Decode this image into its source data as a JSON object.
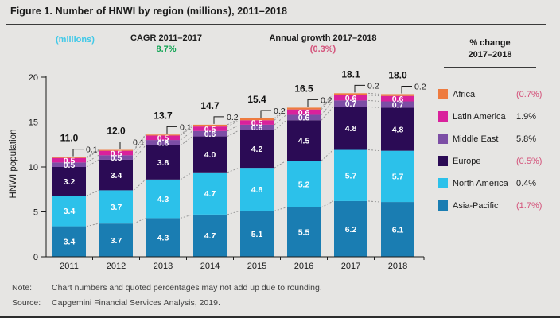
{
  "title": "Figure 1. Number of HNWI by region (millions), 2011–2018",
  "header": {
    "units_label": "(millions)",
    "cagr_label": "CAGR 2011–2017",
    "cagr_value": "8.7%",
    "growth_label": "Annual growth 2017–2018",
    "growth_value": "(0.3%)",
    "pct_change_line1": "% change",
    "pct_change_line2": "2017–2018"
  },
  "colors": {
    "positive_green": "#0fa352",
    "negative_pink": "#d4537b",
    "accent_cyan": "#41c9e8",
    "text_dark": "#1b1b1b",
    "background": "#e6e5e3"
  },
  "legend": {
    "items": [
      {
        "label": "Africa",
        "value": "(0.7%)",
        "color": "#ee7b3f",
        "value_color": "#d4537b"
      },
      {
        "label": "Latin America",
        "value": "1.9%",
        "color": "#d9219c",
        "value_color": "#1b1b1b"
      },
      {
        "label": "Middle East",
        "value": "5.8%",
        "color": "#7c4ea5",
        "value_color": "#1b1b1b"
      },
      {
        "label": "Europe",
        "value": "(0.5%)",
        "color": "#2b0b55",
        "value_color": "#d4537b"
      },
      {
        "label": "North America",
        "value": "0.4%",
        "color": "#2cc1ea",
        "value_color": "#1b1b1b"
      },
      {
        "label": "Asia-Pacific",
        "value": "(1.7%)",
        "color": "#1a7db2",
        "value_color": "#d4537b"
      }
    ]
  },
  "chart_data": {
    "type": "bar",
    "stacked": true,
    "title": "Number of HNWI by region (millions), 2011–2018",
    "categories": [
      "2011",
      "2012",
      "2013",
      "2014",
      "2015",
      "2016",
      "2017",
      "2018"
    ],
    "series": [
      {
        "name": "Asia-Pacific",
        "color": "#1a7db2",
        "values": [
          3.4,
          3.7,
          4.3,
          4.7,
          5.1,
          5.5,
          6.2,
          6.1
        ]
      },
      {
        "name": "North America",
        "color": "#2cc1ea",
        "values": [
          3.4,
          3.7,
          4.3,
          4.7,
          4.8,
          5.2,
          5.7,
          5.7
        ]
      },
      {
        "name": "Europe",
        "color": "#2b0b55",
        "values": [
          3.2,
          3.4,
          3.8,
          4.0,
          4.2,
          4.5,
          4.8,
          4.8
        ]
      },
      {
        "name": "Middle East",
        "color": "#7c4ea5",
        "values": [
          0.5,
          0.5,
          0.6,
          0.6,
          0.6,
          0.6,
          0.7,
          0.7
        ]
      },
      {
        "name": "Latin America",
        "color": "#d9219c",
        "values": [
          0.5,
          0.5,
          0.5,
          0.5,
          0.5,
          0.6,
          0.6,
          0.6
        ]
      },
      {
        "name": "Africa",
        "color": "#ee7b3f",
        "values": [
          0.1,
          0.1,
          0.1,
          0.2,
          0.2,
          0.2,
          0.2,
          0.2
        ]
      }
    ],
    "totals": [
      "11.0",
      "12.0",
      "13.7",
      "14.7",
      "15.4",
      "16.5",
      "18.1",
      "18.0"
    ],
    "callouts": [
      "0.1",
      "0.1",
      "0.1",
      "0.2",
      "0.2",
      "0.2",
      "0.2",
      "0.2"
    ],
    "ylabel": "HNWI population",
    "xlabel": "",
    "yticks": [
      0,
      5,
      10,
      15,
      20
    ],
    "ylim": [
      0,
      20
    ],
    "grid": false,
    "legend_position": "right"
  },
  "notes": {
    "note_label": "Note:",
    "note_text": "Chart numbers and quoted percentages may not add up due to rounding.",
    "source_label": "Source:",
    "source_text": "Capgemini Financial Services Analysis, 2019."
  }
}
